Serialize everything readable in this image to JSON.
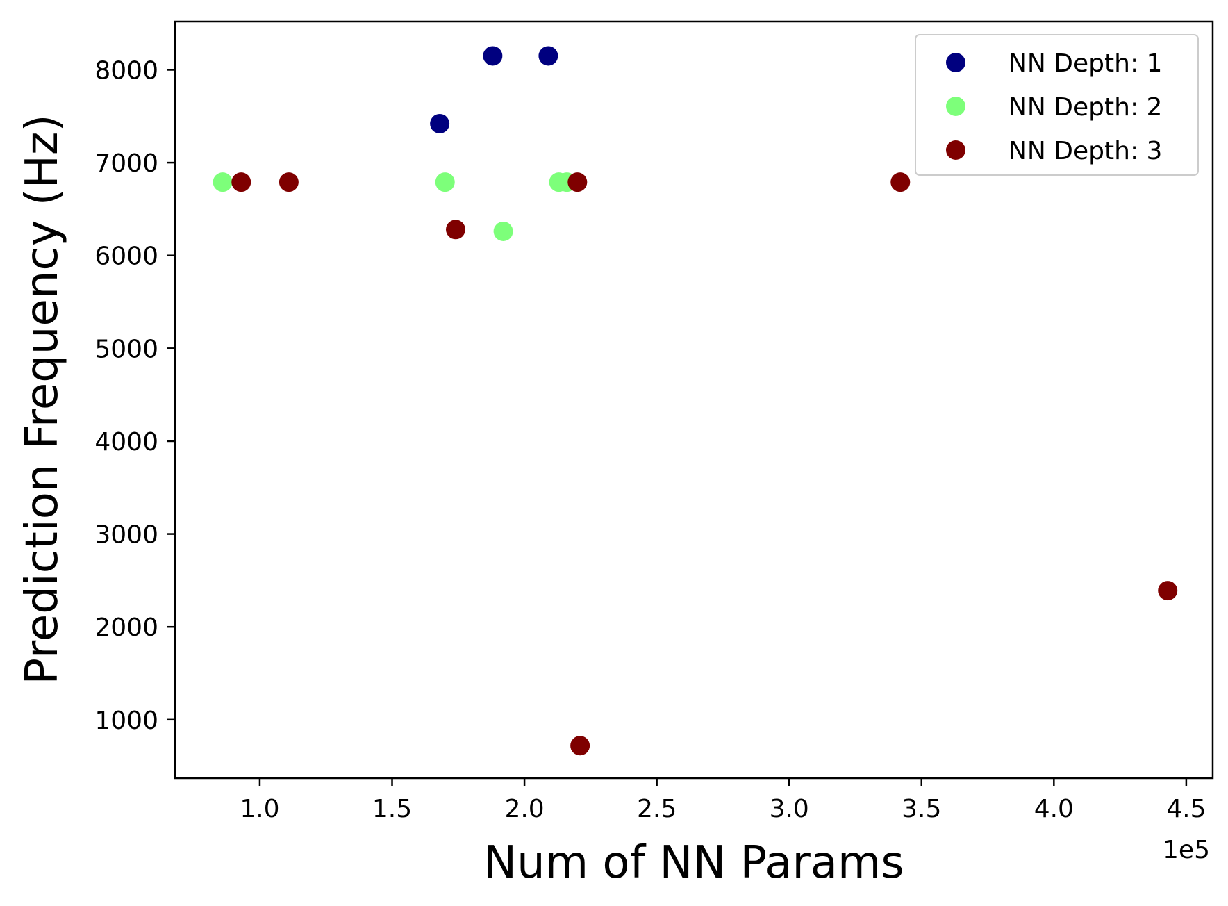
{
  "chart_data": {
    "type": "scatter",
    "xlabel": "Num of NN Params",
    "ylabel": "Prediction Frequency (Hz)",
    "x_offset_label": "1e5",
    "x_scale": 100000,
    "xlim": [
      0.68,
      4.6
    ],
    "ylim": [
      370,
      8520
    ],
    "xticks": [
      1.0,
      1.5,
      2.0,
      2.5,
      3.0,
      3.5,
      4.0,
      4.5
    ],
    "xtick_labels": [
      "1.0",
      "1.5",
      "2.0",
      "2.5",
      "3.0",
      "3.5",
      "4.0",
      "4.5"
    ],
    "yticks": [
      1000,
      2000,
      3000,
      4000,
      5000,
      6000,
      7000,
      8000
    ],
    "ytick_labels": [
      "1000",
      "2000",
      "3000",
      "4000",
      "5000",
      "6000",
      "7000",
      "8000"
    ],
    "grid": false,
    "legend_position": "top-right",
    "series": [
      {
        "name": "NN Depth: 1",
        "color": "#00007f",
        "points": [
          [
            1.68,
            7420
          ],
          [
            1.88,
            8150
          ],
          [
            2.09,
            8150
          ]
        ]
      },
      {
        "name": "NN Depth: 2",
        "color": "#7dff7a",
        "points": [
          [
            0.86,
            6790
          ],
          [
            1.7,
            6790
          ],
          [
            1.92,
            6260
          ],
          [
            2.13,
            6790
          ],
          [
            2.16,
            6790
          ]
        ]
      },
      {
        "name": "NN Depth: 3",
        "color": "#7f0000",
        "points": [
          [
            0.93,
            6790
          ],
          [
            1.11,
            6790
          ],
          [
            1.74,
            6280
          ],
          [
            2.2,
            6790
          ],
          [
            2.21,
            720
          ],
          [
            3.42,
            6790
          ],
          [
            4.43,
            2390
          ]
        ]
      }
    ]
  }
}
